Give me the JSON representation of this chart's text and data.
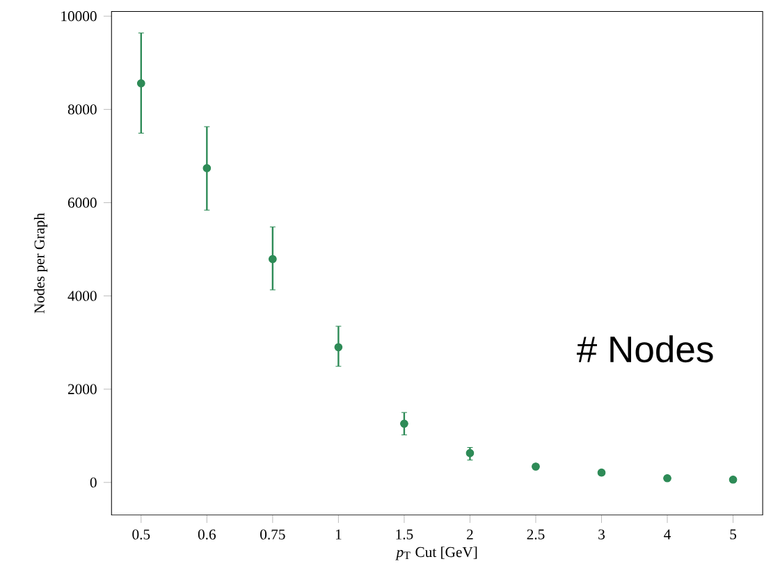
{
  "chart_data": {
    "type": "scatter",
    "xlabel": "*p*$_{T}$ Cut [GeV]",
    "ylabel": "Nodes per Graph",
    "annotations": [
      "# Nodes"
    ],
    "categories": [
      "0.5",
      "0.6",
      "0.75",
      "1",
      "1.5",
      "2",
      "2.5",
      "3",
      "4",
      "5"
    ],
    "values": [
      8560,
      6740,
      4790,
      2900,
      1260,
      630,
      340,
      210,
      90,
      60
    ],
    "errors": [
      [
        7490,
        9640
      ],
      [
        5840,
        7630
      ],
      [
        4130,
        5480
      ],
      [
        2490,
        3350
      ],
      [
        1020,
        1500
      ],
      [
        480,
        750
      ],
      null,
      null,
      null,
      null
    ],
    "color": "#2e8b57",
    "marker": "circle",
    "ylim": [
      -700,
      10100
    ],
    "yticks": [
      0,
      2000,
      4000,
      6000,
      8000,
      10000
    ]
  }
}
